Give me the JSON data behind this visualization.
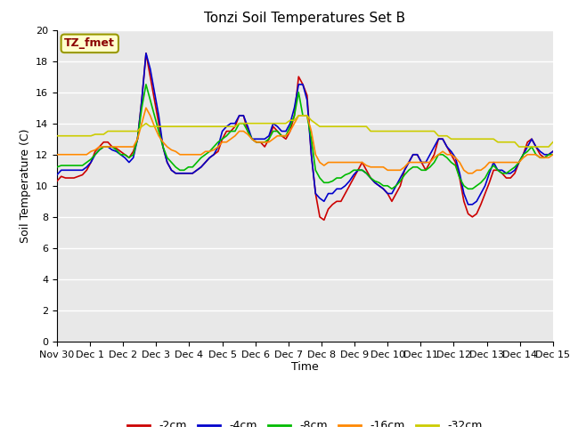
{
  "title": "Tonzi Soil Temperatures Set B",
  "xlabel": "Time",
  "ylabel": "Soil Temperature (C)",
  "annotation": "TZ_fmet",
  "ylim": [
    0,
    20
  ],
  "yticks": [
    0,
    2,
    4,
    6,
    8,
    10,
    12,
    14,
    16,
    18,
    20
  ],
  "x_labels": [
    "Nov 30",
    "Dec 1",
    "Dec 2",
    "Dec 3",
    "Dec 4",
    "Dec 5",
    "Dec 6",
    "Dec 7",
    "Dec 8",
    "Dec 9",
    "Dec 10",
    "Dec 11",
    "Dec 12",
    "Dec 13",
    "Dec 14",
    "Dec 15"
  ],
  "series_colors": [
    "#cc0000",
    "#0000cc",
    "#00bb00",
    "#ff8800",
    "#cccc00"
  ],
  "series_labels": [
    "-2cm",
    "-4cm",
    "-8cm",
    "-16cm",
    "-32cm"
  ],
  "plot_bg_color": "#e8e8e8",
  "fig_bg_color": "#ffffff",
  "grid_color": "#ffffff",
  "series": {
    "m2cm": [
      10.3,
      10.6,
      10.5,
      10.5,
      10.5,
      10.6,
      10.7,
      11.0,
      11.5,
      12.2,
      12.5,
      12.8,
      12.8,
      12.5,
      12.4,
      12.2,
      12.0,
      11.8,
      12.2,
      13.0,
      15.5,
      18.5,
      17.0,
      15.5,
      14.0,
      12.5,
      11.5,
      11.0,
      10.8,
      10.8,
      10.8,
      10.8,
      10.8,
      11.0,
      11.2,
      11.5,
      11.8,
      12.0,
      12.2,
      13.0,
      13.5,
      13.5,
      13.8,
      14.5,
      14.5,
      13.5,
      13.0,
      12.8,
      12.8,
      12.5,
      13.0,
      13.8,
      13.5,
      13.2,
      13.0,
      13.5,
      14.5,
      17.0,
      16.5,
      15.8,
      12.0,
      9.5,
      8.0,
      7.8,
      8.5,
      8.8,
      9.0,
      9.0,
      9.5,
      10.0,
      10.5,
      11.0,
      11.5,
      11.0,
      10.5,
      10.2,
      10.0,
      9.8,
      9.5,
      9.0,
      9.5,
      10.0,
      11.0,
      11.5,
      12.0,
      12.0,
      11.5,
      11.0,
      11.5,
      12.0,
      13.0,
      13.0,
      12.5,
      12.0,
      11.5,
      10.5,
      9.0,
      8.2,
      8.0,
      8.2,
      8.8,
      9.5,
      10.2,
      11.0,
      11.0,
      10.8,
      10.5,
      10.5,
      10.8,
      11.5,
      12.0,
      12.8,
      13.0,
      12.5,
      12.0,
      11.8,
      12.0,
      12.2
    ],
    "m4cm": [
      10.7,
      11.0,
      11.0,
      11.0,
      11.0,
      11.0,
      11.0,
      11.2,
      11.5,
      12.0,
      12.3,
      12.5,
      12.5,
      12.3,
      12.2,
      12.0,
      11.8,
      11.5,
      11.8,
      13.0,
      15.5,
      18.5,
      17.5,
      16.0,
      14.5,
      12.5,
      11.5,
      11.0,
      10.8,
      10.8,
      10.8,
      10.8,
      10.8,
      11.0,
      11.2,
      11.5,
      11.8,
      12.0,
      12.5,
      13.5,
      13.8,
      14.0,
      14.0,
      14.5,
      14.5,
      13.8,
      13.0,
      13.0,
      13.0,
      13.0,
      13.2,
      14.0,
      13.8,
      13.5,
      13.5,
      14.0,
      15.0,
      16.5,
      16.5,
      15.5,
      12.0,
      9.5,
      9.2,
      9.0,
      9.5,
      9.5,
      9.8,
      9.8,
      10.0,
      10.3,
      10.7,
      11.0,
      11.0,
      10.8,
      10.5,
      10.2,
      10.0,
      9.8,
      9.5,
      9.5,
      10.0,
      10.5,
      11.0,
      11.5,
      12.0,
      12.0,
      11.5,
      11.5,
      12.0,
      12.5,
      13.0,
      13.0,
      12.5,
      12.2,
      11.8,
      10.8,
      9.5,
      8.8,
      8.8,
      9.0,
      9.5,
      10.0,
      10.8,
      11.5,
      11.0,
      11.0,
      10.8,
      10.8,
      11.0,
      11.5,
      12.0,
      12.5,
      13.0,
      12.5,
      12.2,
      12.0,
      12.0,
      12.2
    ],
    "m8cm": [
      11.2,
      11.3,
      11.3,
      11.3,
      11.3,
      11.3,
      11.3,
      11.5,
      11.7,
      12.0,
      12.3,
      12.5,
      12.5,
      12.5,
      12.3,
      12.0,
      12.0,
      11.8,
      12.0,
      13.0,
      15.0,
      16.5,
      15.5,
      14.5,
      13.5,
      12.5,
      11.8,
      11.5,
      11.2,
      11.0,
      11.0,
      11.2,
      11.2,
      11.5,
      11.8,
      12.0,
      12.2,
      12.5,
      12.8,
      13.0,
      13.2,
      13.5,
      13.5,
      14.0,
      14.0,
      13.5,
      13.0,
      12.8,
      12.8,
      12.8,
      13.0,
      13.5,
      13.5,
      13.2,
      13.2,
      13.8,
      14.5,
      16.0,
      14.5,
      14.5,
      13.0,
      11.0,
      10.5,
      10.2,
      10.2,
      10.3,
      10.5,
      10.5,
      10.7,
      10.8,
      11.0,
      11.0,
      11.0,
      10.8,
      10.5,
      10.3,
      10.2,
      10.0,
      10.0,
      9.8,
      10.0,
      10.3,
      10.7,
      11.0,
      11.2,
      11.2,
      11.0,
      11.0,
      11.2,
      11.5,
      12.0,
      12.0,
      11.8,
      11.5,
      11.3,
      10.5,
      10.0,
      9.8,
      9.8,
      10.0,
      10.2,
      10.5,
      11.0,
      11.3,
      11.0,
      10.8,
      10.8,
      11.0,
      11.2,
      11.5,
      12.0,
      12.2,
      12.5,
      12.0,
      11.8,
      11.8,
      12.0,
      12.0
    ],
    "m16cm": [
      12.0,
      12.0,
      12.0,
      12.0,
      12.0,
      12.0,
      12.0,
      12.0,
      12.2,
      12.3,
      12.5,
      12.5,
      12.5,
      12.5,
      12.5,
      12.5,
      12.5,
      12.5,
      12.5,
      13.0,
      14.0,
      15.0,
      14.5,
      13.8,
      13.2,
      12.8,
      12.5,
      12.3,
      12.2,
      12.0,
      12.0,
      12.0,
      12.0,
      12.0,
      12.0,
      12.2,
      12.2,
      12.3,
      12.5,
      12.8,
      12.8,
      13.0,
      13.2,
      13.5,
      13.5,
      13.3,
      13.0,
      12.8,
      12.8,
      12.8,
      12.8,
      13.0,
      13.2,
      13.2,
      13.2,
      13.5,
      14.0,
      14.5,
      14.5,
      14.5,
      13.5,
      12.0,
      11.5,
      11.3,
      11.5,
      11.5,
      11.5,
      11.5,
      11.5,
      11.5,
      11.5,
      11.5,
      11.5,
      11.3,
      11.2,
      11.2,
      11.2,
      11.2,
      11.0,
      11.0,
      11.0,
      11.0,
      11.2,
      11.5,
      11.5,
      11.5,
      11.5,
      11.5,
      11.5,
      11.8,
      12.0,
      12.2,
      12.0,
      12.0,
      11.8,
      11.5,
      11.0,
      10.8,
      10.8,
      11.0,
      11.0,
      11.2,
      11.5,
      11.5,
      11.5,
      11.5,
      11.5,
      11.5,
      11.5,
      11.5,
      11.8,
      12.0,
      12.0,
      12.0,
      11.8,
      11.8,
      11.8,
      12.0
    ],
    "m32cm": [
      13.2,
      13.2,
      13.2,
      13.2,
      13.2,
      13.2,
      13.2,
      13.2,
      13.2,
      13.3,
      13.3,
      13.3,
      13.5,
      13.5,
      13.5,
      13.5,
      13.5,
      13.5,
      13.5,
      13.5,
      13.8,
      14.0,
      13.8,
      13.8,
      13.8,
      13.8,
      13.8,
      13.8,
      13.8,
      13.8,
      13.8,
      13.8,
      13.8,
      13.8,
      13.8,
      13.8,
      13.8,
      13.8,
      13.8,
      13.8,
      13.8,
      13.8,
      13.8,
      14.0,
      14.0,
      14.0,
      14.0,
      14.0,
      14.0,
      14.0,
      14.0,
      14.0,
      14.0,
      14.0,
      14.0,
      14.2,
      14.2,
      14.5,
      14.5,
      14.5,
      14.2,
      14.0,
      13.8,
      13.8,
      13.8,
      13.8,
      13.8,
      13.8,
      13.8,
      13.8,
      13.8,
      13.8,
      13.8,
      13.8,
      13.5,
      13.5,
      13.5,
      13.5,
      13.5,
      13.5,
      13.5,
      13.5,
      13.5,
      13.5,
      13.5,
      13.5,
      13.5,
      13.5,
      13.5,
      13.5,
      13.2,
      13.2,
      13.2,
      13.0,
      13.0,
      13.0,
      13.0,
      13.0,
      13.0,
      13.0,
      13.0,
      13.0,
      13.0,
      13.0,
      12.8,
      12.8,
      12.8,
      12.8,
      12.8,
      12.5,
      12.5,
      12.5,
      12.5,
      12.5,
      12.5,
      12.5,
      12.5,
      12.8
    ]
  }
}
